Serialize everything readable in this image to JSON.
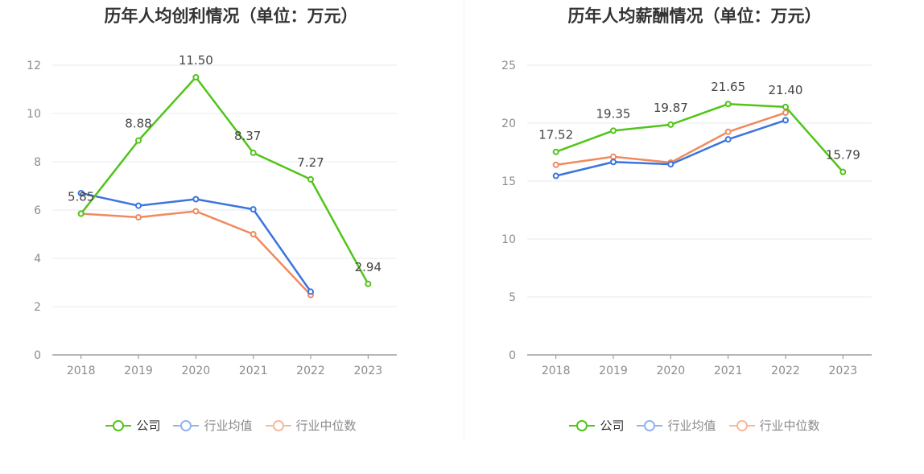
{
  "chart_data": [
    {
      "type": "line",
      "title": "历年人均创利情况（单位：万元）",
      "categories": [
        "2018",
        "2019",
        "2020",
        "2021",
        "2022",
        "2023"
      ],
      "ylim": [
        0,
        12
      ],
      "yticks": [
        "0",
        "2",
        "4",
        "6",
        "8",
        "10",
        "12"
      ],
      "series": [
        {
          "name": "公司",
          "color": "#52c41a",
          "values": [
            5.85,
            8.88,
            11.5,
            8.37,
            7.27,
            2.94
          ],
          "labels": [
            "5.85",
            "8.88",
            "11.50",
            "8.37",
            "7.27",
            "2.94"
          ]
        },
        {
          "name": "行业均值",
          "color": "#3b74e0",
          "values": [
            6.7,
            6.18,
            6.45,
            6.03,
            2.62,
            null
          ]
        },
        {
          "name": "行业中位数",
          "color": "#f08a5d",
          "values": [
            5.85,
            5.7,
            5.95,
            5.0,
            2.48,
            null
          ]
        }
      ]
    },
    {
      "type": "line",
      "title": "历年人均薪酬情况（单位：万元）",
      "categories": [
        "2018",
        "2019",
        "2020",
        "2021",
        "2022",
        "2023"
      ],
      "ylim": [
        0,
        25
      ],
      "yticks": [
        "0",
        "5",
        "10",
        "15",
        "20",
        "25"
      ],
      "series": [
        {
          "name": "公司",
          "color": "#52c41a",
          "values": [
            17.52,
            19.35,
            19.87,
            21.65,
            21.4,
            15.79
          ],
          "labels": [
            "17.52",
            "19.35",
            "19.87",
            "21.65",
            "21.40",
            "15.79"
          ]
        },
        {
          "name": "行业均值",
          "color": "#3b74e0",
          "values": [
            15.45,
            16.65,
            16.45,
            18.6,
            20.25,
            null
          ]
        },
        {
          "name": "行业中位数",
          "color": "#f08a5d",
          "values": [
            16.4,
            17.1,
            16.6,
            19.25,
            20.9,
            null
          ]
        }
      ]
    }
  ],
  "legend": [
    {
      "name": "公司",
      "color": "#52c41a"
    },
    {
      "name": "行业均值",
      "color": "#91b3f0"
    },
    {
      "name": "行业中位数",
      "color": "#f8b89a"
    }
  ]
}
